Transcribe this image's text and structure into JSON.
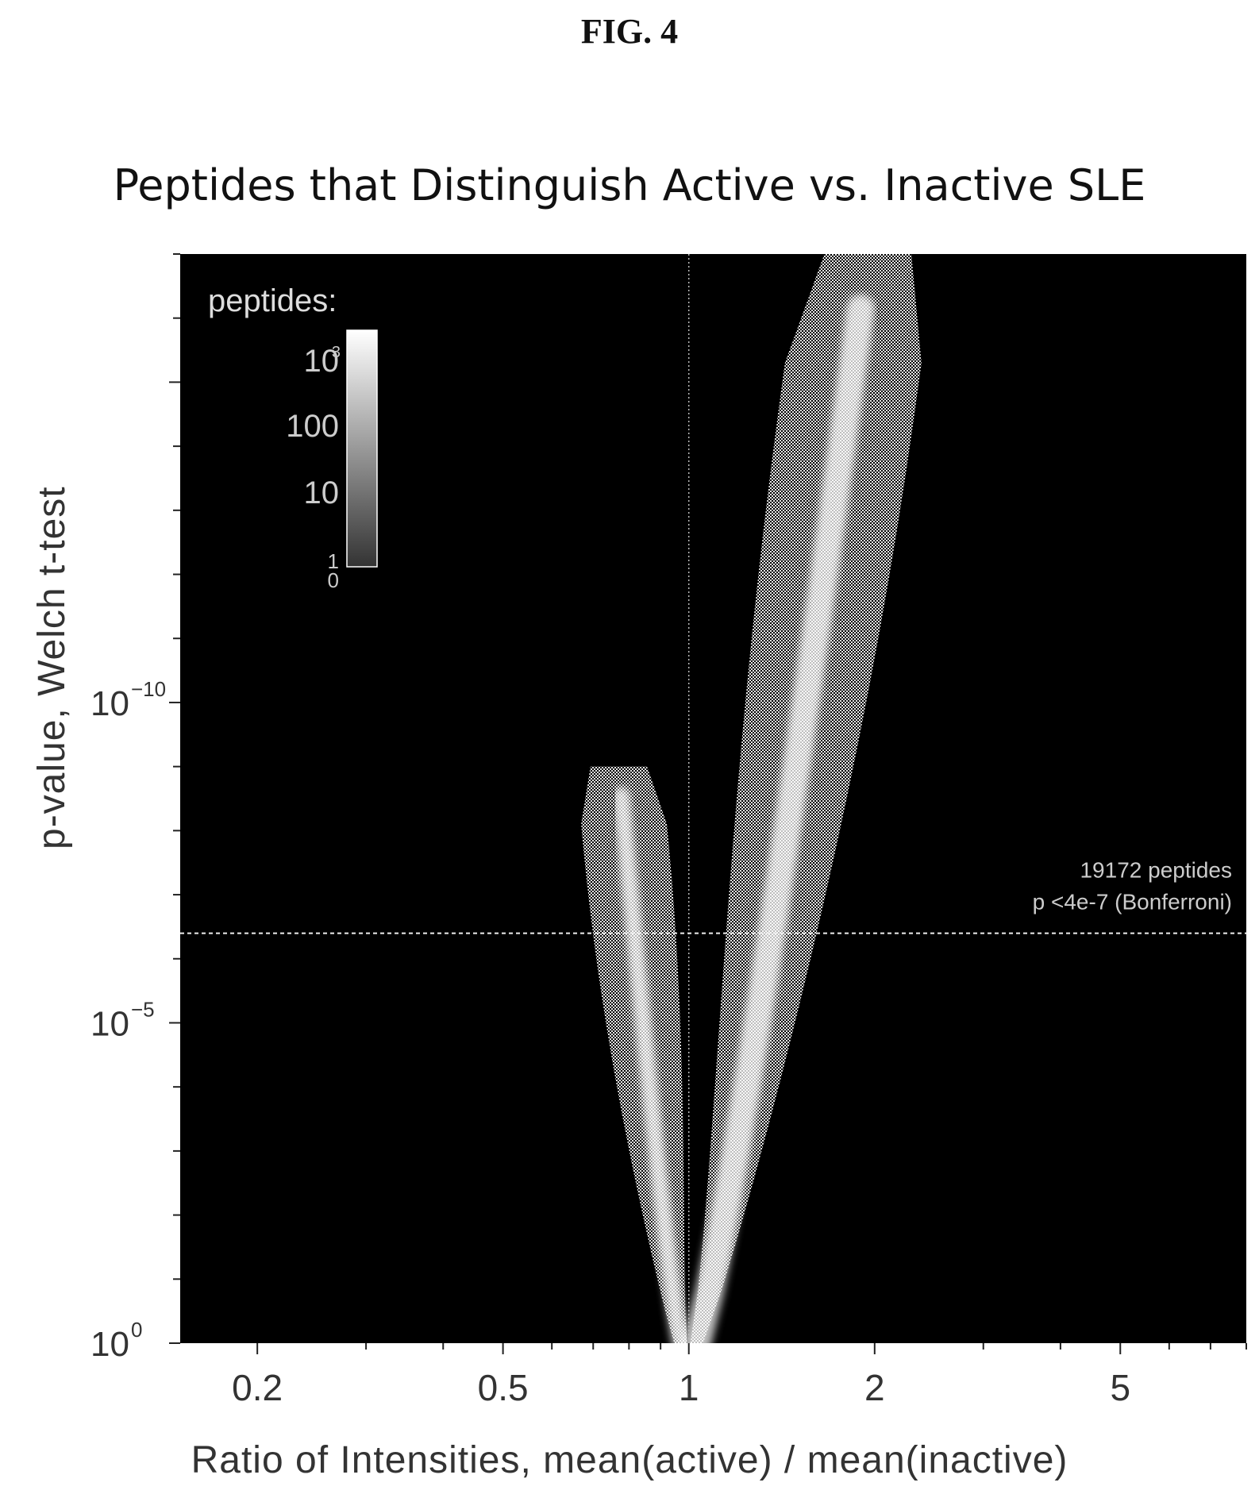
{
  "figure_label": "FIG. 4",
  "chart_data": {
    "type": "heatmap",
    "title": "Peptides that Distinguish Active vs. Inactive SLE",
    "xlabel": "Ratio of Intensities, mean(active) / mean(inactive)",
    "ylabel": "p-value, Welch t-test",
    "x_scale": "log",
    "y_scale": "log (reversed: small p-values at top)",
    "xlim": [
      0.15,
      8
    ],
    "ylim": [
      1,
      1e-17
    ],
    "x_ticks": [
      {
        "value": 0.2,
        "label": "0.2"
      },
      {
        "value": 0.5,
        "label": "0.5"
      },
      {
        "value": 1,
        "label": "1"
      },
      {
        "value": 2,
        "label": "2"
      },
      {
        "value": 5,
        "label": "5"
      }
    ],
    "y_ticks": [
      {
        "value": 1,
        "base": "10",
        "exp": "0"
      },
      {
        "value": 1e-05,
        "base": "10",
        "exp": "−5"
      },
      {
        "value": 1e-10,
        "base": "10",
        "exp": "−10"
      }
    ],
    "reference_line_x": 1,
    "threshold": {
      "p": 4e-07,
      "label_line1": "19172 peptides",
      "label_line2": "p <4e-7 (Bonferroni)"
    },
    "colorbar": {
      "title": "peptides:",
      "ticks": [
        {
          "label": "0",
          "exp": ""
        },
        {
          "label": "1",
          "exp": ""
        },
        {
          "label": "10",
          "exp": ""
        },
        {
          "label": "100",
          "exp": ""
        },
        {
          "label": "10",
          "exp": "3"
        }
      ]
    },
    "density_branches": [
      {
        "name": "left",
        "apex_x": 0.97,
        "apex_p": 1,
        "top_center_x": 0.77,
        "top_p": 1e-09,
        "max_p": 1e-10
      },
      {
        "name": "right",
        "apex_x": 1.03,
        "apex_p": 1,
        "top_center_x": 1.95,
        "top_p": 1e-17,
        "max_p": 1e-17
      }
    ],
    "background": "#000000",
    "grid": false
  }
}
